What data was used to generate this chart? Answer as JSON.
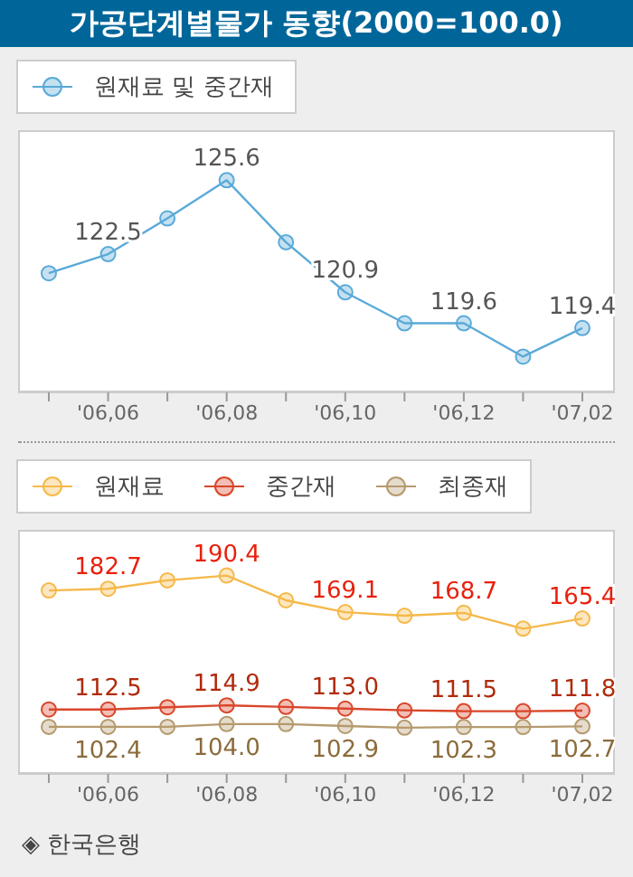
{
  "chart_data": [
    {
      "type": "line",
      "title": "가공단계별물가 동향(2000=100.0)",
      "categories": [
        null,
        "'06,06",
        null,
        "'06,08",
        null,
        "'06,10",
        null,
        "'06,12",
        null,
        "'07,02"
      ],
      "series": [
        {
          "name": "원재료 및 중간재",
          "color": "#5aaad8",
          "values": [
            121.7,
            122.5,
            124.0,
            125.6,
            123.0,
            120.9,
            119.6,
            119.6,
            118.2,
            119.4
          ],
          "value_labels": [
            null,
            "122.5",
            null,
            "125.6",
            null,
            "120.9",
            null,
            "119.6",
            null,
            "119.4"
          ]
        }
      ],
      "ylim": [
        116.7,
        127.7
      ],
      "tick_labels": "x",
      "legend": "top left",
      "marker": "circle",
      "grid": false
    },
    {
      "type": "line",
      "categories": [
        null,
        "'06,06",
        null,
        "'06,08",
        null,
        "'06,10",
        null,
        "'06,12",
        null,
        "'07,02"
      ],
      "series": [
        {
          "name": "원재료",
          "color": "#f5b94a",
          "values": [
            181.7,
            182.7,
            187.6,
            190.4,
            176.0,
            169.1,
            167.0,
            168.7,
            159.5,
            165.4
          ],
          "value_labels": [
            null,
            "182.7",
            null,
            "190.4",
            null,
            "169.1",
            null,
            "168.7",
            null,
            "165.4"
          ]
        },
        {
          "name": "중간재",
          "color": "#d9462a",
          "values": [
            112.5,
            112.5,
            113.8,
            114.9,
            114.0,
            113.0,
            112.0,
            111.5,
            111.5,
            111.8
          ],
          "value_labels": [
            null,
            "112.5",
            null,
            "114.9",
            null,
            "113.0",
            null,
            "111.5",
            null,
            "111.8"
          ]
        },
        {
          "name": "최종재",
          "color": "#b59a6e",
          "values": [
            102.4,
            102.4,
            102.4,
            104.0,
            104.0,
            102.9,
            101.9,
            102.3,
            102.3,
            102.7
          ],
          "value_labels": [
            null,
            "102.4",
            null,
            "104.0",
            null,
            "102.9",
            null,
            "102.3",
            null,
            "102.7"
          ]
        }
      ],
      "ylim": [
        75,
        217
      ],
      "tick_labels": "x",
      "legend": "top left",
      "marker": "circle",
      "grid": false,
      "annotations": [
        "◈ 한국은행"
      ]
    }
  ]
}
